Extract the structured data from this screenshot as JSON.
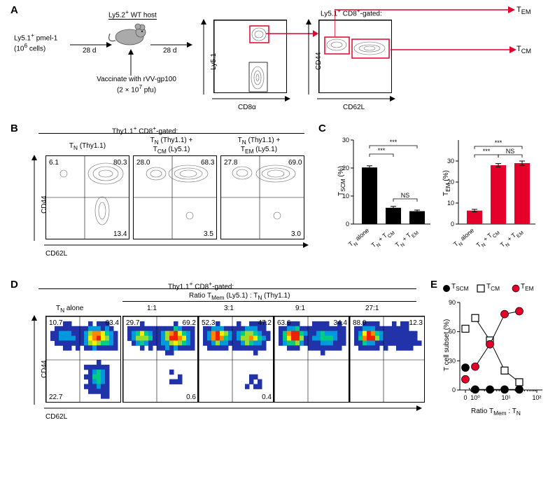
{
  "panelA": {
    "label": "A",
    "cells_text_1": "Ly5.1",
    "cells_text_1b": " pmel-1",
    "cells_text_2": "(10",
    "cells_text_2b": " cells)",
    "host_text": "Ly5.2",
    "host_text_b": " WT host",
    "d28_a": "28 d",
    "d28_b": "28 d",
    "vaccine_1": "Vaccinate with rVV-gp100",
    "vaccine_2": "(2 × 10",
    "vaccine_2b": " pfu)",
    "plot1_y": "Ly5.1",
    "plot1_x": "CD8α",
    "gate_title": "Ly5.1",
    "gate_title_b": " CD8",
    "gate_title_c": "-gated:",
    "plot2_y": "CD44",
    "plot2_x": "CD62L",
    "tem": "T",
    "tem_sub": "EM",
    "tcm": "T",
    "tcm_sub": "CM"
  },
  "panelB": {
    "label": "B",
    "header": "Thy1.1",
    "header_b": " CD8",
    "header_c": "-gated:",
    "col1": "T",
    "col1_sub": "N",
    "col1_b": " (Thy1.1)",
    "col2a": "T",
    "col2a_sub": "N",
    "col2a_b": " (Thy1.1) +",
    "col2b": "T",
    "col2b_sub": "CM",
    "col2b_b": " (Ly5.1)",
    "col3a": "T",
    "col3a_sub": "N",
    "col3a_b": " (Thy1.1) +",
    "col3b": "T",
    "col3b_sub": "EM",
    "col3b_b": " (Ly5.1)",
    "y_axis": "CD44",
    "x_axis": "CD62L",
    "plots": [
      {
        "q1": "6.1",
        "q2": "80.3",
        "q4": "13.4"
      },
      {
        "q1": "28.0",
        "q2": "68.3",
        "q4": "3.5"
      },
      {
        "q1": "27.8",
        "q2": "69.0",
        "q4": "3.0"
      }
    ]
  },
  "panelC": {
    "label": "C",
    "chart1": {
      "y_label": "T",
      "y_label_sub": "SCM",
      "y_label_b": " (%)",
      "y_max": 30,
      "tick_step": 10,
      "bars": [
        20.2,
        5.8,
        4.6
      ],
      "errors": [
        0.6,
        0.5,
        0.4
      ],
      "fill": "#000",
      "sig": [
        {
          "from": 0,
          "to": 1,
          "y": 25,
          "text": "***"
        },
        {
          "from": 0,
          "to": 2,
          "y": 28,
          "text": "***"
        },
        {
          "from": 1,
          "to": 2,
          "y": 9,
          "text": "NS"
        }
      ]
    },
    "chart2": {
      "y_label": "T",
      "y_label_sub": "EM",
      "y_label_b": " (%)",
      "y_max": 30,
      "tick_step": 10,
      "bars": [
        6.4,
        28,
        29
      ],
      "errors": [
        0.6,
        0.8,
        1.0
      ],
      "fill": "#e4002b",
      "sig": [
        {
          "from": 0,
          "to": 1,
          "y": 33,
          "text": "***"
        },
        {
          "from": 0,
          "to": 2,
          "y": 37,
          "text": "***"
        },
        {
          "from": 1,
          "to": 2,
          "y": 33,
          "text": "NS"
        }
      ]
    },
    "x_labels": [
      "T_N alone",
      "T_N + T_CM",
      "T_N + T_EM"
    ]
  },
  "panelD": {
    "label": "D",
    "header": "Thy1.1",
    "header_b": " CD8",
    "header_c": "-gated:",
    "ratio_label_a": "Ratio T",
    "ratio_label_a_sub": "Mem",
    "ratio_label_b": " (Ly5.1) : T",
    "ratio_label_b_sub": "N",
    "ratio_label_c": " (Thy1.1)",
    "y_axis": "CD44",
    "x_axis": "CD62L",
    "col_alone": "T",
    "col_alone_sub": "N",
    "col_alone_b": " alone",
    "ratios": [
      "1:1",
      "3:1",
      "9:1",
      "27:1"
    ],
    "plots": [
      {
        "q1": "10.7",
        "q2": "63.4",
        "q3": "22.7"
      },
      {
        "q1": "29.7",
        "q2": "69.2",
        "q4": "0.6"
      },
      {
        "q1": "52.3",
        "q2": "47.2",
        "q4": "0.4"
      },
      {
        "q1": "63.6",
        "q2": "34.4"
      },
      {
        "q1": "88.0",
        "q2": "12.3"
      }
    ]
  },
  "panelE": {
    "label": "E",
    "legend": [
      {
        "label": "T",
        "sub": "SCM",
        "marker": "circle-filled",
        "color": "#000"
      },
      {
        "label": "T",
        "sub": "CM",
        "marker": "square-open",
        "color": "#000"
      },
      {
        "label": "T",
        "sub": "EM",
        "marker": "circle-filled",
        "color": "#e4002b"
      }
    ],
    "y_label": "T cell subset (%)",
    "y_max": 90,
    "y_tick_step": 30,
    "x_label_a": "Ratio T",
    "x_label_a_sub": "Mem",
    "x_label_b": " : T",
    "x_label_b_sub": "N",
    "x_ticks": [
      "0",
      "10⁰",
      "10¹",
      "10²"
    ],
    "series": {
      "tscm": {
        "x": [
          0,
          1,
          3,
          9,
          27
        ],
        "y": [
          23,
          0.5,
          0.5,
          0.5,
          0.5
        ]
      },
      "tcm": {
        "x": [
          0,
          1,
          3,
          9,
          27
        ],
        "y": [
          63,
          74,
          51,
          20,
          8
        ]
      },
      "tem": {
        "x": [
          0,
          1,
          3,
          9,
          27
        ],
        "y": [
          11,
          24,
          47,
          78,
          81
        ]
      }
    }
  },
  "colors": {
    "red": "#e4002b",
    "black": "#000000",
    "grey": "#aaaaaa"
  }
}
